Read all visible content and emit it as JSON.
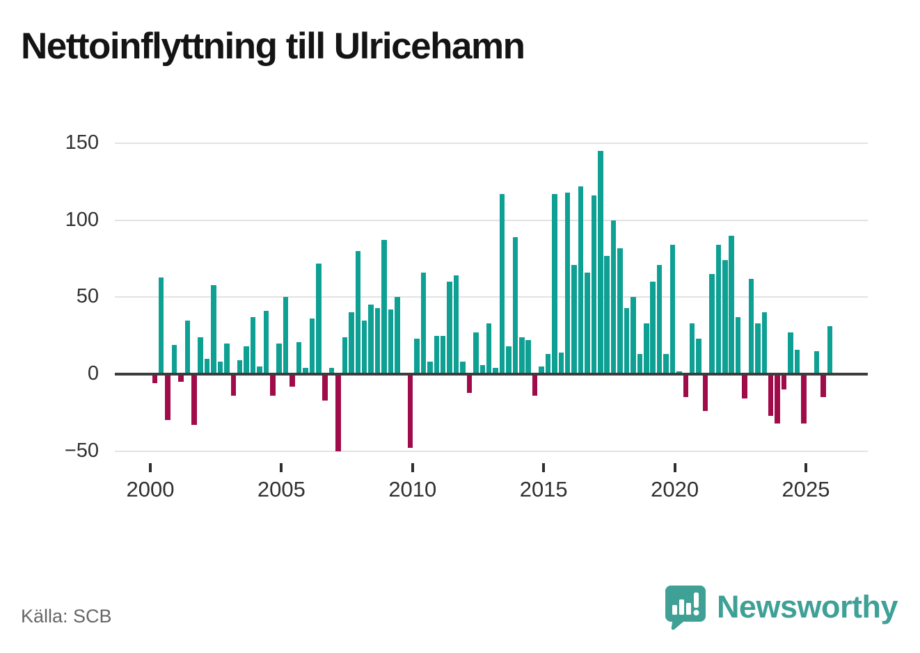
{
  "page": {
    "title": "Nettoinflyttning till Ulricehamn"
  },
  "footer": {
    "source": "Källa: SCB",
    "brand": "Newsworthy",
    "brand_icon": "speech-bubble-bar-chart-icon"
  },
  "colors": {
    "positive_bar": "#0fa094",
    "negative_bar": "#a00c49",
    "gridline": "#e2e2e2",
    "zero_line": "#3c3c3c",
    "axis_text": "#2f2f2f",
    "brand_teal": "#3fa096"
  },
  "chart_data": {
    "type": "bar",
    "title": "Nettoinflyttning till Ulricehamn",
    "frequency": "quarterly",
    "x_start_year": 2000,
    "values_by_year": {
      "2000": [
        -6,
        63,
        -30,
        19
      ],
      "2001": [
        -5,
        35,
        -33,
        24
      ],
      "2002": [
        10,
        58,
        8,
        20
      ],
      "2003": [
        -14,
        9,
        18,
        37
      ],
      "2004": [
        5,
        41,
        -14,
        20
      ],
      "2005": [
        50,
        -8,
        21,
        4
      ],
      "2006": [
        36,
        72,
        -17,
        4
      ],
      "2007": [
        -50,
        24,
        40,
        80
      ],
      "2008": [
        35,
        45,
        43,
        87
      ],
      "2009": [
        42,
        50,
        0,
        -48
      ],
      "2010": [
        23,
        66,
        8,
        25
      ],
      "2011": [
        25,
        60,
        64,
        8
      ],
      "2012": [
        -12,
        27,
        6,
        33
      ],
      "2013": [
        4,
        117,
        18,
        89
      ],
      "2014": [
        24,
        22,
        -14,
        5
      ],
      "2015": [
        13,
        117,
        14,
        118
      ],
      "2016": [
        71,
        122,
        66,
        116
      ],
      "2017": [
        145,
        77,
        100,
        82
      ],
      "2018": [
        43,
        50,
        13,
        33
      ],
      "2019": [
        60,
        71,
        13,
        84
      ],
      "2020": [
        2,
        -15,
        33,
        23
      ],
      "2021": [
        -24,
        65,
        84,
        74
      ],
      "2022": [
        90,
        37,
        -16,
        62
      ],
      "2023": [
        33,
        40,
        -27,
        -32
      ],
      "2024": [
        -10,
        27,
        16,
        -32
      ],
      "2025": [
        0,
        15,
        -15,
        31
      ]
    },
    "x_tick_years": [
      2000,
      2005,
      2010,
      2015,
      2020,
      2025
    ],
    "x_tick_labels": [
      "2000",
      "2005",
      "2010",
      "2015",
      "2020",
      "2025"
    ],
    "y_ticks": [
      150,
      100,
      50,
      0,
      -50
    ],
    "y_tick_labels": [
      "150",
      "100",
      "50",
      "0",
      "−50"
    ],
    "ylim": [
      -55,
      155
    ],
    "grid": true,
    "legend": "none"
  }
}
